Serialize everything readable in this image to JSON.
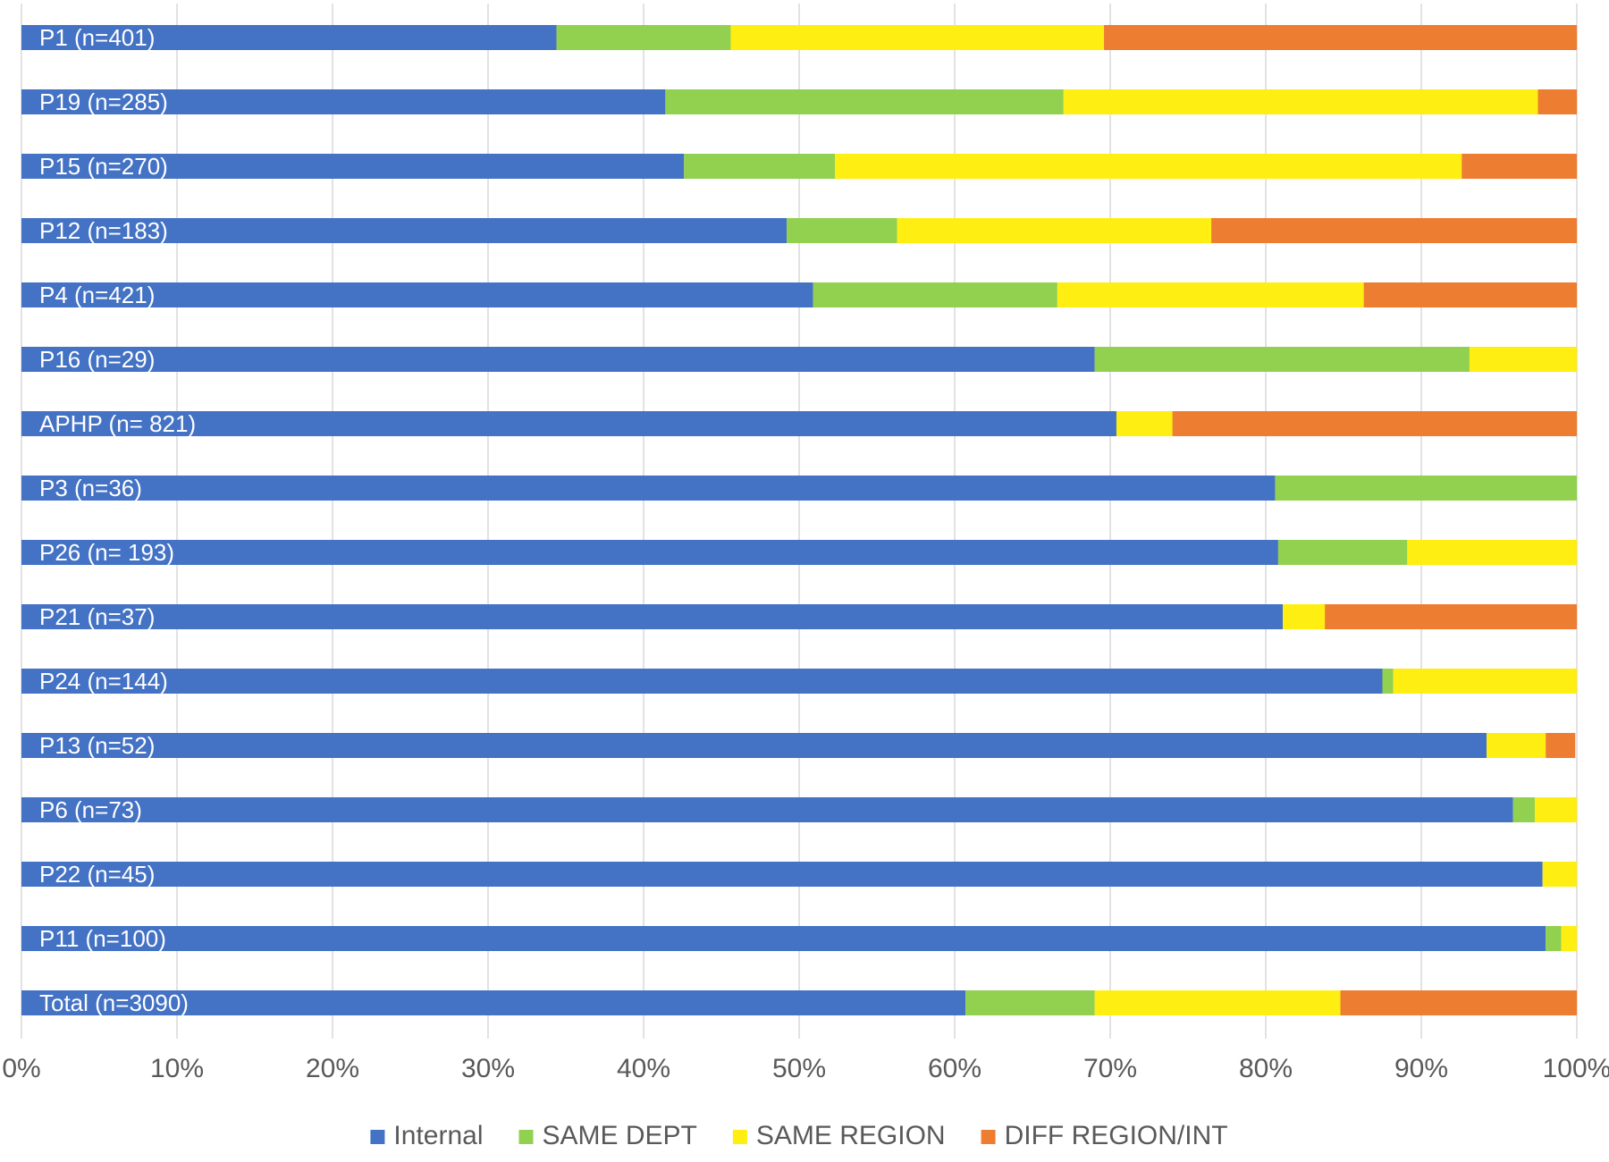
{
  "chart_data": {
    "type": "bar",
    "orientation": "horizontal",
    "stacked": "percent",
    "categories": [
      "P1 (n=401)",
      "P19 (n=285)",
      "P15 (n=270)",
      "P12 (n=183)",
      "P4 (n=421)",
      "P16 (n=29)",
      "APHP (n= 821)",
      "P3 (n=36)",
      "P26 (n= 193)",
      "P21 (n=37)",
      "P24 (n=144)",
      "P13 (n=52)",
      "P6 (n=73)",
      "P22 (n=45)",
      "P11 (n=100)",
      "Total (n=3090)"
    ],
    "series": [
      {
        "name": "Internal",
        "color": "#4472c4",
        "values": [
          34.4,
          41.4,
          42.6,
          49.2,
          50.9,
          69.0,
          70.4,
          80.6,
          80.8,
          81.1,
          87.5,
          94.2,
          95.9,
          97.8,
          98.0,
          60.7
        ]
      },
      {
        "name": "SAME DEPT",
        "color": "#92d050",
        "values": [
          11.2,
          25.6,
          9.7,
          7.1,
          15.7,
          24.1,
          0.0,
          19.4,
          8.3,
          0.0,
          0.7,
          0.0,
          1.4,
          0.0,
          1.0,
          8.3
        ]
      },
      {
        "name": "SAME REGION",
        "color": "#ffee11",
        "values": [
          24.0,
          30.5,
          40.3,
          20.2,
          19.7,
          6.9,
          3.6,
          0.0,
          10.9,
          2.7,
          11.8,
          3.8,
          2.7,
          2.2,
          1.0,
          15.8
        ]
      },
      {
        "name": "DIFF REGION/INT",
        "color": "#ed7d31",
        "values": [
          30.4,
          2.5,
          7.4,
          23.5,
          13.7,
          0.0,
          26.0,
          0.0,
          0.0,
          16.2,
          0.0,
          1.9,
          0.0,
          0.0,
          0.0,
          15.2
        ]
      }
    ],
    "x_ticks": [
      "0%",
      "10%",
      "20%",
      "30%",
      "40%",
      "50%",
      "60%",
      "70%",
      "80%",
      "90%",
      "100%"
    ],
    "xlim": [
      0,
      100
    ],
    "grid": "vertical",
    "legend_position": "bottom",
    "title": "",
    "xlabel": "",
    "ylabel": ""
  }
}
